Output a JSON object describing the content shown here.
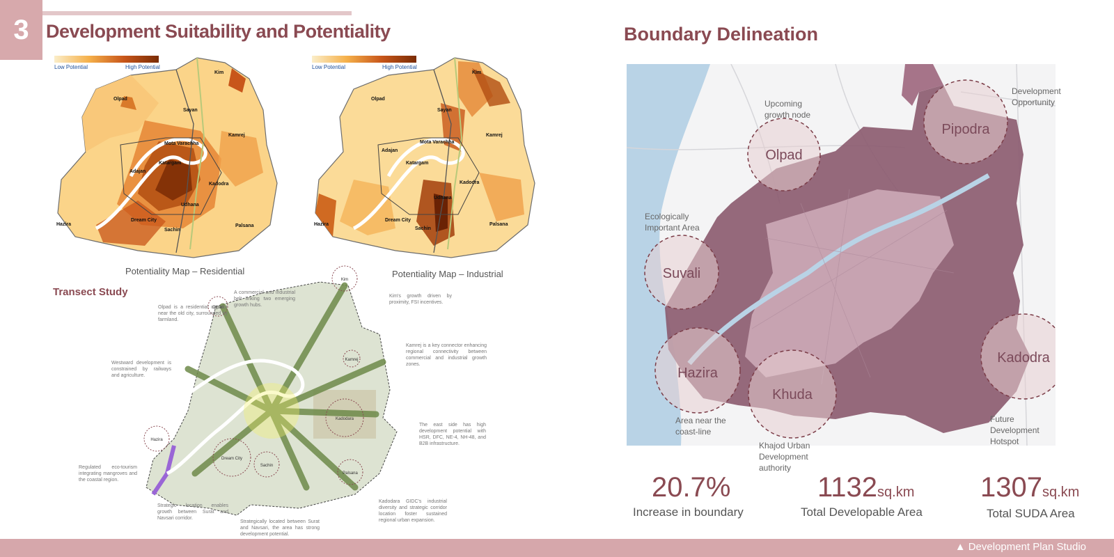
{
  "slide": {
    "number": "3",
    "title": "Development Suitability and Potentiality",
    "footer": "Development Plan Studio"
  },
  "colors": {
    "accent": "#8a4a52",
    "bar": "#d6a7ab",
    "boundary_dark": "#8b5a6e",
    "boundary_light": "#c9a6b4",
    "water": "#b9d3e6",
    "potential_low": "#fbeec9",
    "potential_high": "#7a2c05"
  },
  "maps": {
    "residential": {
      "caption": "Potentiality Map – Residential",
      "legend_low": "Low Potential",
      "legend_high": "High Potential",
      "places": [
        "Kim",
        "Olpad",
        "Sayan",
        "Kamrej",
        "Mota Varachha",
        "Katargam",
        "Adajan",
        "Kadodra",
        "Udhana",
        "Hazira",
        "Dream City",
        "Sachin",
        "Palsana"
      ]
    },
    "industrial": {
      "caption": "Potentiality Map – Industrial",
      "legend_low": "Low Potential",
      "legend_high": "High Potential",
      "places": [
        "Kim",
        "Olpad",
        "Sayan",
        "Kamrej",
        "Mota Varachha",
        "Katargam",
        "Adajan",
        "Kadodra",
        "Udhana",
        "Hazira",
        "Dream City",
        "Sachin",
        "Palsana"
      ]
    }
  },
  "transect": {
    "title": "Transect Study",
    "nodes": [
      "Kim",
      "Olpad",
      "Kamrej",
      "Kadodara",
      "Hazira",
      "Dream City",
      "Sachin",
      "Palsana"
    ],
    "annotations": {
      "olpad": "Olpad is a residential corridor near the old city, surrounded by farmland.",
      "commercial_belt": "A commercial and industrial belt linking two emerging growth hubs.",
      "kim": "Kim's growth driven by proximity, FSI incentives.",
      "kamrej": "Kamrej is a key connector enhancing regional connectivity between commercial and industrial growth zones.",
      "westward": "Westward development is constrained by railways and agriculture.",
      "east_side": "The east side has high development potential with HSR, DFC, NE-4, NH-48, and B2B infrastructure.",
      "eco_tourism": "Regulated eco-tourism integrating mangroves and the coastal region.",
      "strategic_location": "Strategic location enables growth between Surat and Navsari corridor.",
      "strategically_located": "Strategically located between Surat and Navsari, the area has strong development potential.",
      "kadodara": "Kadodara GIDC's industrial diversity and strategic corridor location foster sustained regional urban expansion."
    }
  },
  "boundary": {
    "title": "Boundary Delineation",
    "circles": [
      "Olpad",
      "Pipodra",
      "Suvali",
      "Hazira",
      "Khuda",
      "Kadodra"
    ],
    "annotations": {
      "olpad": "Upcoming growth node",
      "pipodra": "Development Opportunity",
      "suvali": "Ecologically Important Area",
      "hazira": "Area near the coast-line",
      "khuda": "Khajod Urban Development authority",
      "kadodra": "Future Development Hotspot"
    }
  },
  "stats": [
    {
      "value": "20.7%",
      "unit": "",
      "label": "Increase in boundary"
    },
    {
      "value": "1132",
      "unit": "sq.km",
      "label": "Total Developable Area"
    },
    {
      "value": "1307",
      "unit": "sq.km",
      "label": "Total SUDA Area"
    }
  ]
}
